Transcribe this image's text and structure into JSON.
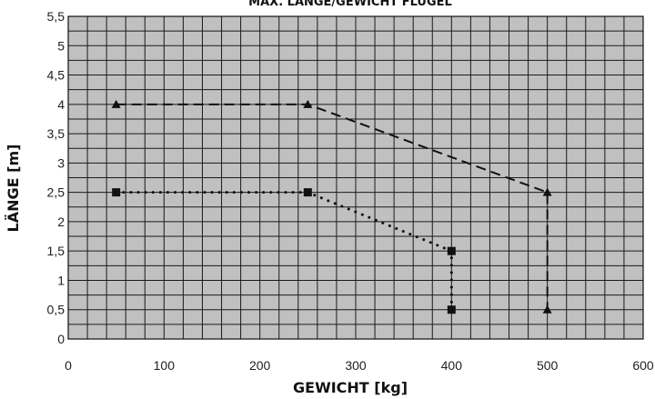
{
  "chart_data": {
    "type": "line",
    "title": "MAX. LÄNGE/GEWICHT FLÜGEL",
    "xlabel": "GEWICHT [kg]",
    "ylabel": "LÄNGE  [m]",
    "xlim": [
      0,
      600
    ],
    "ylim": [
      0,
      5.5
    ],
    "x_ticks": [
      "0",
      "100",
      "200",
      "300",
      "400",
      "500",
      "600"
    ],
    "y_ticks": [
      "0",
      "0,5",
      "1",
      "1,5",
      "2",
      "2,5",
      "3",
      "3,5",
      "4",
      "4,5",
      "5",
      "5,5"
    ],
    "grid": true,
    "plot_background": "#c0c0c0",
    "grid_color": "#1a1a1a",
    "series": [
      {
        "marker": "triangle",
        "line_style": "dashed",
        "color": "#111111",
        "points": [
          [
            50,
            4.0
          ],
          [
            250,
            4.0
          ],
          [
            500,
            2.5
          ],
          [
            500,
            0.5
          ]
        ]
      },
      {
        "marker": "square",
        "line_style": "dotted",
        "color": "#111111",
        "points": [
          [
            50,
            2.5
          ],
          [
            250,
            2.5
          ],
          [
            400,
            1.5
          ],
          [
            400,
            0.5
          ]
        ]
      }
    ]
  }
}
